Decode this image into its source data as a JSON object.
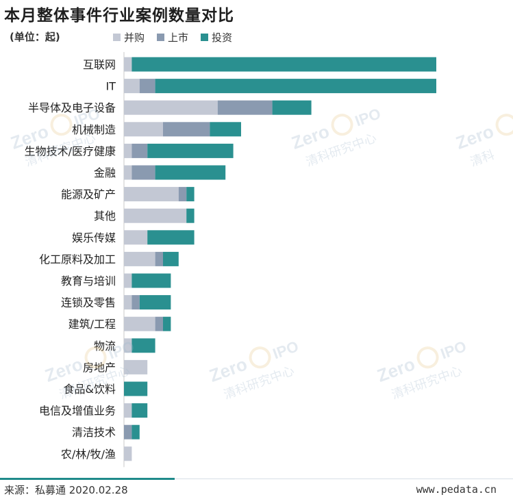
{
  "title": "本月整体事件行业案例数量对比",
  "unit_label": "(单位：起)",
  "legend": [
    {
      "name": "并购",
      "color": "#c3c8d4"
    },
    {
      "name": "上市",
      "color": "#8a9ab0"
    },
    {
      "name": "投资",
      "color": "#2a9090"
    }
  ],
  "chart_data": {
    "type": "bar",
    "orientation": "horizontal",
    "stacked": true,
    "categories": [
      "互联网",
      "IT",
      "半导体及电子设备",
      "机械制造",
      "生物技术/医疗健康",
      "金融",
      "能源及矿产",
      "其他",
      "娱乐传媒",
      "化工原料及加工",
      "教育与培训",
      "连锁及零售",
      "建筑/工程",
      "物流",
      "房地产",
      "食品&饮料",
      "电信及增值业务",
      "清洁技术",
      "农/林/牧/渔"
    ],
    "series": [
      {
        "name": "并购",
        "values": [
          1,
          2,
          12,
          5,
          1,
          1,
          7,
          8,
          3,
          4,
          1,
          1,
          4,
          1,
          3,
          0,
          1,
          0,
          1
        ]
      },
      {
        "name": "上市",
        "values": [
          0,
          2,
          7,
          6,
          2,
          3,
          1,
          0,
          0,
          1,
          0,
          1,
          1,
          0,
          0,
          0,
          0,
          1,
          0
        ]
      },
      {
        "name": "投资",
        "values": [
          39,
          36,
          5,
          4,
          11,
          9,
          1,
          1,
          6,
          2,
          5,
          4,
          1,
          3,
          0,
          3,
          2,
          1,
          0
        ]
      }
    ],
    "xlim": [
      0,
      40
    ],
    "grid": false,
    "legend_position": "top"
  },
  "footer": {
    "source": "来源：私募通 2020.02.28",
    "site": "www.pedata.cn"
  },
  "watermark": {
    "logo_text": "Zero2IPO",
    "cn_text": "清科研究中心",
    "en_text": "Zero2IPO Research"
  }
}
